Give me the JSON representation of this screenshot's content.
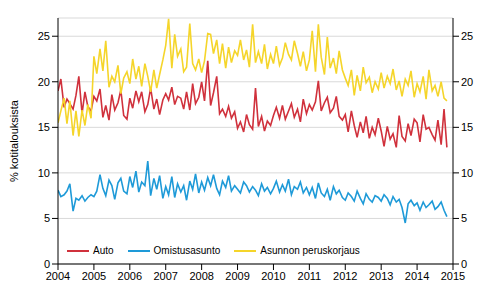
{
  "chart_data": {
    "type": "line",
    "y_label": "% kotitalouksista",
    "xlim": [
      2004,
      2015
    ],
    "xticks": [
      2004,
      2005,
      2006,
      2007,
      2008,
      2009,
      2010,
      2011,
      2012,
      2013,
      2014,
      2015
    ],
    "ylim": [
      0,
      27
    ],
    "yticks": [
      0,
      5,
      10,
      15,
      20,
      25
    ],
    "grid": true,
    "legend": "lower left",
    "x": [
      2004,
      2004.08,
      2004.17,
      2004.25,
      2004.33,
      2004.42,
      2004.5,
      2004.58,
      2004.67,
      2004.75,
      2004.83,
      2004.92,
      2005,
      2005.08,
      2005.17,
      2005.25,
      2005.33,
      2005.42,
      2005.5,
      2005.58,
      2005.67,
      2005.75,
      2005.83,
      2005.92,
      2006,
      2006.08,
      2006.17,
      2006.25,
      2006.33,
      2006.42,
      2006.5,
      2006.58,
      2006.67,
      2006.75,
      2006.83,
      2006.92,
      2007,
      2007.08,
      2007.17,
      2007.25,
      2007.33,
      2007.42,
      2007.5,
      2007.58,
      2007.67,
      2007.75,
      2007.83,
      2007.92,
      2008,
      2008.08,
      2008.17,
      2008.25,
      2008.33,
      2008.42,
      2008.5,
      2008.58,
      2008.67,
      2008.75,
      2008.83,
      2008.92,
      2009,
      2009.08,
      2009.17,
      2009.25,
      2009.33,
      2009.42,
      2009.5,
      2009.58,
      2009.67,
      2009.75,
      2009.83,
      2009.92,
      2010,
      2010.08,
      2010.17,
      2010.25,
      2010.33,
      2010.42,
      2010.5,
      2010.58,
      2010.67,
      2010.75,
      2010.83,
      2010.92,
      2011,
      2011.08,
      2011.17,
      2011.25,
      2011.33,
      2011.42,
      2011.5,
      2011.58,
      2011.67,
      2011.75,
      2011.83,
      2011.92,
      2012,
      2012.08,
      2012.17,
      2012.25,
      2012.33,
      2012.42,
      2012.5,
      2012.58,
      2012.67,
      2012.75,
      2012.83,
      2012.92,
      2013,
      2013.08,
      2013.17,
      2013.25,
      2013.33,
      2013.42,
      2013.5,
      2013.58,
      2013.67,
      2013.75,
      2013.83,
      2013.92,
      2014,
      2014.08,
      2014.17,
      2014.25,
      2014.33,
      2014.42,
      2014.5,
      2014.58,
      2014.67,
      2014.75,
      2014.83
    ],
    "series": [
      {
        "name": "Auto",
        "color": "#d0313c",
        "values": [
          19.0,
          20.3,
          17.2,
          18.1,
          17.6,
          17.0,
          18.5,
          20.6,
          16.5,
          18.9,
          17.3,
          16.8,
          18.4,
          17.9,
          19.2,
          16.1,
          17.4,
          15.8,
          18.6,
          16.9,
          17.7,
          19.1,
          16.3,
          15.9,
          18.2,
          17.1,
          19.0,
          17.8,
          18.9,
          16.7,
          17.5,
          19.3,
          17.0,
          18.1,
          16.4,
          18.0,
          18.7,
          18.0,
          19.4,
          17.5,
          18.4,
          18.2,
          17.0,
          18.9,
          16.9,
          19.8,
          17.6,
          18.3,
          20.0,
          17.9,
          22.3,
          17.4,
          18.8,
          20.6,
          16.5,
          17.0,
          16.2,
          17.3,
          16.0,
          16.7,
          14.9,
          15.6,
          14.5,
          16.4,
          15.3,
          14.8,
          19.3,
          15.1,
          16.2,
          14.6,
          15.7,
          15.2,
          16.3,
          17.2,
          16.0,
          17.4,
          15.9,
          16.8,
          17.6,
          16.1,
          17.0,
          15.6,
          18.1,
          16.5,
          17.5,
          16.9,
          17.8,
          20.1,
          16.8,
          17.7,
          18.3,
          16.6,
          17.1,
          18.4,
          16.2,
          15.8,
          16.4,
          14.5,
          16.8,
          15.2,
          13.9,
          15.6,
          14.4,
          16.2,
          13.8,
          15.0,
          14.2,
          16.0,
          14.6,
          12.9,
          15.1,
          13.7,
          14.3,
          12.8,
          16.3,
          14.0,
          13.5,
          15.4,
          14.1,
          15.9,
          15.5,
          13.4,
          16.4,
          14.8,
          15.0,
          14.2,
          13.6,
          15.8,
          13.1,
          17.0,
          12.8
        ]
      },
      {
        "name": "Omistusasunto",
        "color": "#1e9ad8",
        "values": [
          8.1,
          7.4,
          7.6,
          8.0,
          8.8,
          5.8,
          7.2,
          7.0,
          7.5,
          6.9,
          7.3,
          7.6,
          7.4,
          8.0,
          9.8,
          8.3,
          7.5,
          9.2,
          8.6,
          7.1,
          8.9,
          9.4,
          8.0,
          7.7,
          9.6,
          8.4,
          10.2,
          7.9,
          9.0,
          8.6,
          11.3,
          7.5,
          9.4,
          8.2,
          9.7,
          7.2,
          8.5,
          7.6,
          9.6,
          7.3,
          8.8,
          7.9,
          8.6,
          7.0,
          9.1,
          8.2,
          9.9,
          7.8,
          9.0,
          8.1,
          9.5,
          8.6,
          9.8,
          8.3,
          7.6,
          9.1,
          8.4,
          9.7,
          8.0,
          8.6,
          8.2,
          7.8,
          9.0,
          8.6,
          7.9,
          8.5,
          8.1,
          7.5,
          8.8,
          8.0,
          8.4,
          7.7,
          8.3,
          9.1,
          7.9,
          8.7,
          8.0,
          9.3,
          7.6,
          8.5,
          8.2,
          9.0,
          7.8,
          8.4,
          7.6,
          8.4,
          7.2,
          8.9,
          7.8,
          7.4,
          8.2,
          7.0,
          8.5,
          7.7,
          8.1,
          7.3,
          7.0,
          7.8,
          7.4,
          6.9,
          8.0,
          7.2,
          6.6,
          7.7,
          7.1,
          6.8,
          7.5,
          7.3,
          6.9,
          7.6,
          7.2,
          6.5,
          7.4,
          6.8,
          7.1,
          6.2,
          4.5,
          6.6,
          7.0,
          6.4,
          6.7,
          5.9,
          6.8,
          6.2,
          6.5,
          6.9,
          6.0,
          6.3,
          6.8,
          5.9,
          5.2
        ]
      },
      {
        "name": "Asunnon peruskorjaus",
        "color": "#f5d52a",
        "values": [
          15.5,
          16.8,
          18.2,
          15.4,
          17.9,
          14.1,
          16.8,
          14.0,
          16.9,
          15.2,
          17.5,
          16.0,
          22.8,
          20.9,
          23.6,
          21.2,
          24.5,
          19.4,
          20.6,
          20.0,
          21.8,
          18.7,
          20.4,
          21.1,
          19.8,
          22.5,
          20.3,
          21.7,
          19.5,
          22.0,
          20.6,
          18.9,
          21.3,
          19.3,
          20.8,
          22.4,
          24.0,
          26.9,
          21.5,
          25.2,
          22.8,
          23.6,
          21.1,
          21.6,
          26.4,
          22.0,
          21.3,
          22.5,
          21.0,
          22.3,
          25.3,
          25.2,
          23.1,
          24.6,
          22.0,
          24.2,
          21.5,
          23.8,
          22.1,
          23.4,
          22.9,
          24.6,
          22.4,
          23.5,
          21.6,
          26.3,
          22.1,
          23.3,
          22.0,
          24.1,
          21.4,
          23.0,
          22.0,
          23.9,
          21.8,
          22.6,
          24.3,
          23.0,
          22.4,
          24.5,
          23.1,
          21.7,
          23.3,
          21.2,
          22.4,
          25.6,
          21.1,
          26.3,
          22.7,
          20.8,
          24.9,
          21.5,
          22.6,
          20.9,
          23.4,
          21.3,
          20.4,
          19.6,
          21.3,
          18.5,
          20.7,
          19.0,
          21.6,
          19.9,
          20.5,
          18.8,
          20.0,
          19.2,
          21.0,
          19.3,
          20.6,
          19.8,
          21.4,
          19.1,
          20.1,
          18.4,
          20.3,
          19.6,
          21.2,
          18.3,
          19.8,
          18.9,
          20.6,
          18.1,
          21.3,
          19.0,
          19.6,
          18.4,
          20.0,
          18.2,
          17.9
        ]
      }
    ]
  }
}
